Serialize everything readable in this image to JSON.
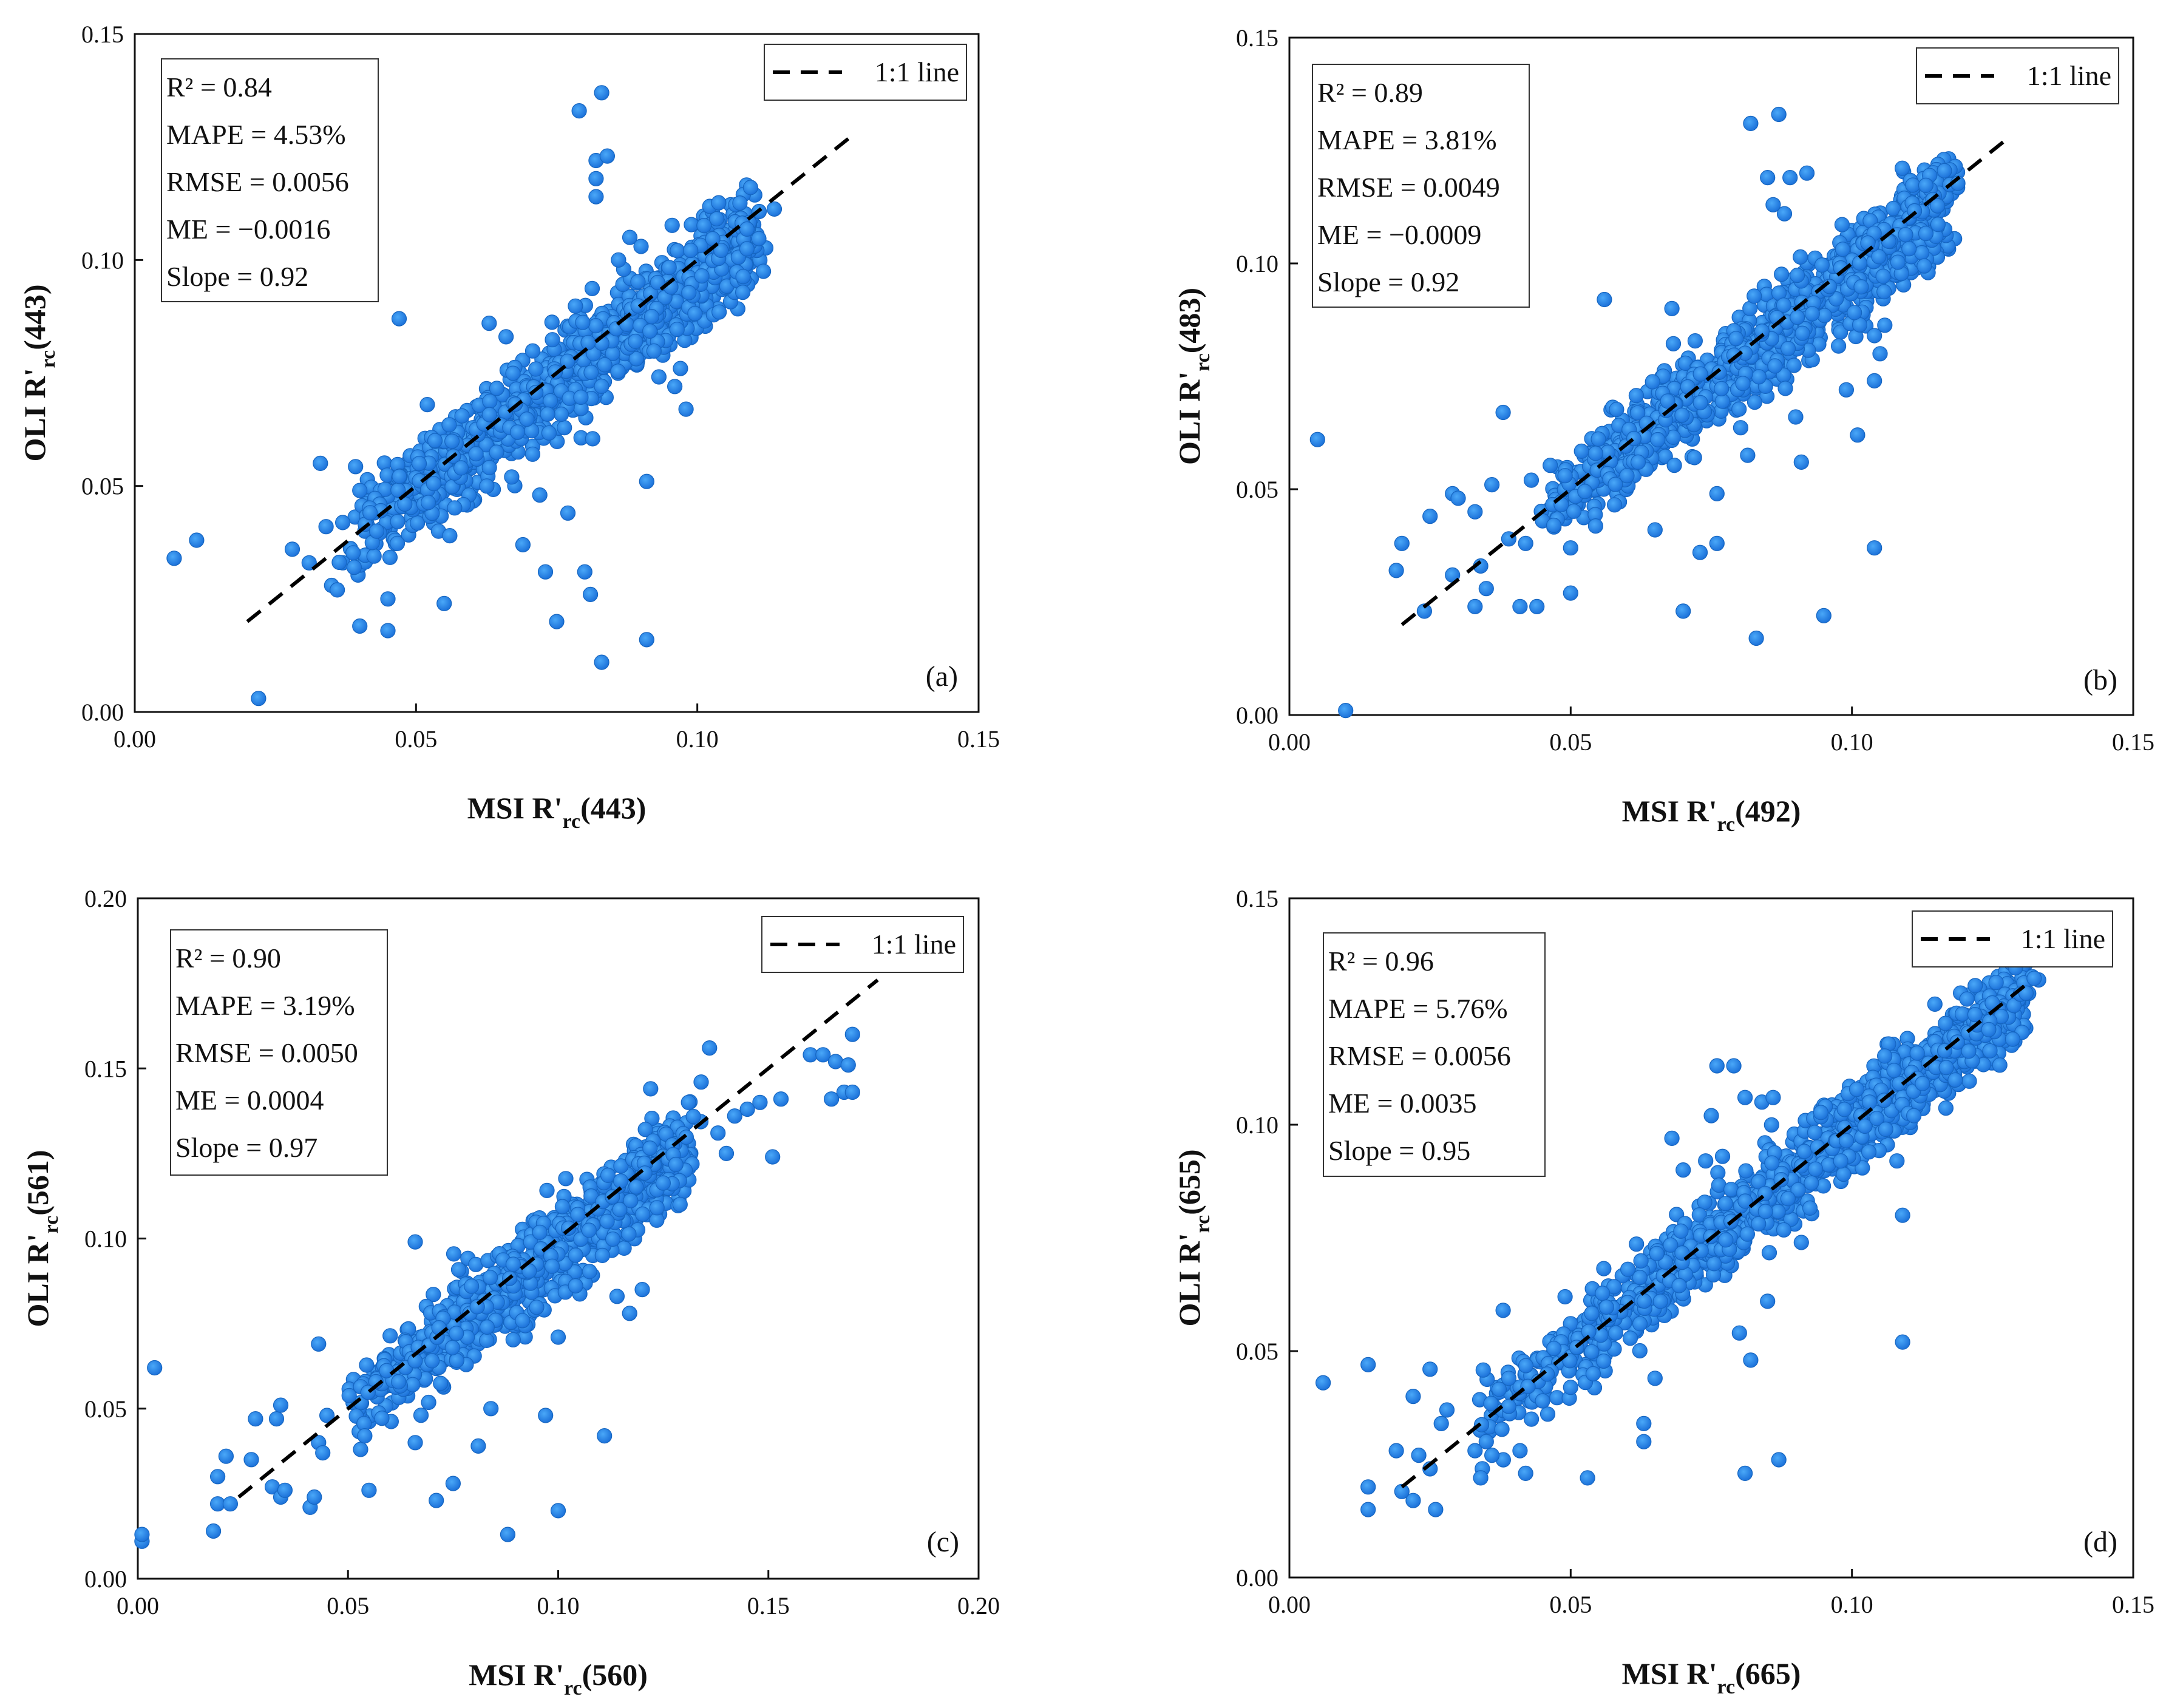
{
  "chart_data": [
    {
      "type": "scatter",
      "panel": "(a)",
      "xlabel": {
        "main": "MSI R'",
        "sub": "rc",
        "tail": "(443)"
      },
      "ylabel": {
        "main": "OLI R'",
        "sub": "rc",
        "tail": "(443)"
      },
      "xlim": [
        0,
        0.15
      ],
      "ylim": [
        0,
        0.15
      ],
      "xticks": [
        "0.00",
        "0.05",
        "0.10",
        "0.15"
      ],
      "yticks": [
        "0.00",
        "0.05",
        "0.10",
        "0.15"
      ],
      "stats": [
        "R² = 0.84",
        "MAPE = 4.53%",
        "RMSE = 0.0056",
        "ME = −0.0016",
        "Slope = 0.92"
      ],
      "legend": "1:1 line",
      "line": {
        "x0": 0.02,
        "x1": 0.127
      },
      "cluster": {
        "x0": 0.038,
        "x1": 0.11,
        "slope": 0.94,
        "intercept": 0.0025,
        "spread": 0.0055,
        "n": 1100
      },
      "outliers": [
        [
          0.007,
          0.034
        ],
        [
          0.011,
          0.038
        ],
        [
          0.022,
          0.003
        ],
        [
          0.028,
          0.036
        ],
        [
          0.031,
          0.033
        ],
        [
          0.033,
          0.055
        ],
        [
          0.034,
          0.041
        ],
        [
          0.035,
          0.028
        ],
        [
          0.036,
          0.027
        ],
        [
          0.039,
          0.032
        ],
        [
          0.04,
          0.019
        ],
        [
          0.04,
          0.049
        ],
        [
          0.043,
          0.04
        ],
        [
          0.045,
          0.018
        ],
        [
          0.045,
          0.025
        ],
        [
          0.047,
          0.087
        ],
        [
          0.048,
          0.046
        ],
        [
          0.052,
          0.068
        ],
        [
          0.054,
          0.04
        ],
        [
          0.055,
          0.024
        ],
        [
          0.056,
          0.039
        ],
        [
          0.058,
          0.054
        ],
        [
          0.063,
          0.086
        ],
        [
          0.066,
          0.083
        ],
        [
          0.067,
          0.052
        ],
        [
          0.069,
          0.037
        ],
        [
          0.072,
          0.048
        ],
        [
          0.073,
          0.031
        ],
        [
          0.075,
          0.02
        ],
        [
          0.077,
          0.044
        ],
        [
          0.079,
          0.133
        ],
        [
          0.08,
          0.031
        ],
        [
          0.081,
          0.026
        ],
        [
          0.082,
          0.114
        ],
        [
          0.082,
          0.118
        ],
        [
          0.082,
          0.122
        ],
        [
          0.083,
          0.137
        ],
        [
          0.083,
          0.011
        ],
        [
          0.084,
          0.123
        ],
        [
          0.086,
          0.1
        ],
        [
          0.088,
          0.105
        ],
        [
          0.089,
          0.082
        ],
        [
          0.09,
          0.103
        ],
        [
          0.091,
          0.051
        ],
        [
          0.091,
          0.016
        ],
        [
          0.096,
          0.072
        ],
        [
          0.097,
          0.076
        ],
        [
          0.098,
          0.067
        ]
      ]
    },
    {
      "type": "scatter",
      "panel": "(b)",
      "xlabel": {
        "main": "MSI R'",
        "sub": "rc",
        "tail": "(492)"
      },
      "ylabel": {
        "main": "OLI R'",
        "sub": "rc",
        "tail": "(483)"
      },
      "xlim": [
        0,
        0.15
      ],
      "ylim": [
        0,
        0.15
      ],
      "xticks": [
        "0.00",
        "0.05",
        "0.10",
        "0.15"
      ],
      "yticks": [
        "0.00",
        "0.05",
        "0.10",
        "0.15"
      ],
      "stats": [
        "R² = 0.89",
        "MAPE = 3.81%",
        "RMSE = 0.0049",
        "ME = −0.0009",
        "Slope = 0.92"
      ],
      "legend": "1:1 line",
      "line": {
        "x0": 0.02,
        "x1": 0.127
      },
      "cluster": {
        "x0": 0.045,
        "x1": 0.117,
        "slope": 0.97,
        "intercept": 0.0005,
        "spread": 0.005,
        "n": 1200
      },
      "outliers": [
        [
          0.005,
          0.061
        ],
        [
          0.01,
          0.001
        ],
        [
          0.019,
          0.032
        ],
        [
          0.02,
          0.038
        ],
        [
          0.024,
          0.023
        ],
        [
          0.025,
          0.044
        ],
        [
          0.029,
          0.031
        ],
        [
          0.029,
          0.049
        ],
        [
          0.03,
          0.048
        ],
        [
          0.033,
          0.024
        ],
        [
          0.033,
          0.045
        ],
        [
          0.034,
          0.033
        ],
        [
          0.035,
          0.028
        ],
        [
          0.036,
          0.051
        ],
        [
          0.038,
          0.067
        ],
        [
          0.039,
          0.039
        ],
        [
          0.041,
          0.024
        ],
        [
          0.042,
          0.038
        ],
        [
          0.043,
          0.052
        ],
        [
          0.044,
          0.024
        ],
        [
          0.045,
          0.043
        ],
        [
          0.047,
          0.042
        ],
        [
          0.049,
          0.053
        ],
        [
          0.05,
          0.027
        ],
        [
          0.05,
          0.037
        ],
        [
          0.056,
          0.092
        ],
        [
          0.06,
          0.053
        ],
        [
          0.062,
          0.056
        ],
        [
          0.065,
          0.041
        ],
        [
          0.068,
          0.09
        ],
        [
          0.07,
          0.023
        ],
        [
          0.072,
          0.057
        ],
        [
          0.073,
          0.036
        ],
        [
          0.076,
          0.038
        ],
        [
          0.076,
          0.049
        ],
        [
          0.082,
          0.131
        ],
        [
          0.083,
          0.017
        ],
        [
          0.084,
          0.085
        ],
        [
          0.085,
          0.119
        ],
        [
          0.086,
          0.113
        ],
        [
          0.087,
          0.133
        ],
        [
          0.088,
          0.111
        ],
        [
          0.089,
          0.119
        ],
        [
          0.09,
          0.066
        ],
        [
          0.091,
          0.056
        ],
        [
          0.092,
          0.12
        ],
        [
          0.095,
          0.022
        ],
        [
          0.098,
          0.099
        ],
        [
          0.099,
          0.072
        ],
        [
          0.101,
          0.062
        ],
        [
          0.104,
          0.074
        ],
        [
          0.104,
          0.037
        ],
        [
          0.105,
          0.08
        ],
        [
          0.104,
          0.084
        ]
      ]
    },
    {
      "type": "scatter",
      "panel": "(c)",
      "xlabel": {
        "main": "MSI R'",
        "sub": "rc",
        "tail": "(560)"
      },
      "ylabel": {
        "main": "OLI R'",
        "sub": "rc",
        "tail": "(561)"
      },
      "xlim": [
        0,
        0.2
      ],
      "ylim": [
        0,
        0.2
      ],
      "xticks": [
        "0.00",
        "0.05",
        "0.10",
        "0.15",
        "0.20"
      ],
      "yticks": [
        "0.00",
        "0.05",
        "0.10",
        "0.15",
        "0.20"
      ],
      "stats": [
        "R² = 0.90",
        "MAPE = 3.19%",
        "RMSE = 0.0050",
        "ME = 0.0004",
        "Slope = 0.97"
      ],
      "legend": "1:1 line",
      "line": {
        "x0": 0.024,
        "x1": 0.176
      },
      "cluster": {
        "x0": 0.05,
        "x1": 0.13,
        "slope": 0.96,
        "intercept": 0.0015,
        "spread": 0.0065,
        "n": 1000
      },
      "outliers": [
        [
          0.001,
          0.011
        ],
        [
          0.001,
          0.013
        ],
        [
          0.004,
          0.062
        ],
        [
          0.018,
          0.014
        ],
        [
          0.019,
          0.022
        ],
        [
          0.019,
          0.03
        ],
        [
          0.021,
          0.036
        ],
        [
          0.022,
          0.022
        ],
        [
          0.027,
          0.035
        ],
        [
          0.028,
          0.047
        ],
        [
          0.032,
          0.027
        ],
        [
          0.033,
          0.047
        ],
        [
          0.034,
          0.024
        ],
        [
          0.034,
          0.051
        ],
        [
          0.035,
          0.026
        ],
        [
          0.041,
          0.021
        ],
        [
          0.042,
          0.024
        ],
        [
          0.043,
          0.069
        ],
        [
          0.043,
          0.04
        ],
        [
          0.044,
          0.037
        ],
        [
          0.045,
          0.048
        ],
        [
          0.053,
          0.038
        ],
        [
          0.054,
          0.042
        ],
        [
          0.055,
          0.026
        ],
        [
          0.066,
          0.04
        ],
        [
          0.066,
          0.099
        ],
        [
          0.071,
          0.023
        ],
        [
          0.075,
          0.028
        ],
        [
          0.081,
          0.039
        ],
        [
          0.084,
          0.05
        ],
        [
          0.088,
          0.013
        ],
        [
          0.097,
          0.048
        ],
        [
          0.1,
          0.02
        ],
        [
          0.1,
          0.071
        ],
        [
          0.111,
          0.042
        ],
        [
          0.114,
          0.083
        ],
        [
          0.117,
          0.078
        ],
        [
          0.12,
          0.085
        ],
        [
          0.122,
          0.144
        ],
        [
          0.129,
          0.11
        ],
        [
          0.131,
          0.14
        ],
        [
          0.134,
          0.146
        ],
        [
          0.136,
          0.156
        ],
        [
          0.138,
          0.131
        ],
        [
          0.14,
          0.125
        ],
        [
          0.142,
          0.136
        ],
        [
          0.145,
          0.138
        ],
        [
          0.148,
          0.14
        ],
        [
          0.151,
          0.124
        ],
        [
          0.153,
          0.141
        ],
        [
          0.16,
          0.154
        ],
        [
          0.163,
          0.154
        ],
        [
          0.165,
          0.141
        ],
        [
          0.166,
          0.152
        ],
        [
          0.168,
          0.143
        ],
        [
          0.169,
          0.151
        ],
        [
          0.17,
          0.16
        ],
        [
          0.17,
          0.143
        ]
      ]
    },
    {
      "type": "scatter",
      "panel": "(d)",
      "xlabel": {
        "main": "MSI R'",
        "sub": "rc",
        "tail": "(665)"
      },
      "ylabel": {
        "main": "OLI R'",
        "sub": "rc",
        "tail": "(655)"
      },
      "xlim": [
        0,
        0.15
      ],
      "ylim": [
        0,
        0.15
      ],
      "xticks": [
        "0.00",
        "0.05",
        "0.10",
        "0.15"
      ],
      "yticks": [
        "0.00",
        "0.05",
        "0.10",
        "0.15"
      ],
      "stats": [
        "R² = 0.96",
        "MAPE = 5.76%",
        "RMSE = 0.0056",
        "ME = 0.0035",
        "Slope = 0.95"
      ],
      "legend": "1:1 line",
      "line": {
        "x0": 0.02,
        "x1": 0.131
      },
      "cluster": {
        "x0": 0.033,
        "x1": 0.131,
        "slope": 0.98,
        "intercept": 0.001,
        "spread": 0.0045,
        "n": 1400
      },
      "outliers": [
        [
          0.006,
          0.043
        ],
        [
          0.014,
          0.047
        ],
        [
          0.014,
          0.02
        ],
        [
          0.014,
          0.015
        ],
        [
          0.019,
          0.028
        ],
        [
          0.02,
          0.019
        ],
        [
          0.022,
          0.04
        ],
        [
          0.022,
          0.017
        ],
        [
          0.023,
          0.027
        ],
        [
          0.025,
          0.046
        ],
        [
          0.025,
          0.024
        ],
        [
          0.026,
          0.015
        ],
        [
          0.027,
          0.034
        ],
        [
          0.028,
          0.037
        ],
        [
          0.033,
          0.028
        ],
        [
          0.034,
          0.022
        ],
        [
          0.035,
          0.03
        ],
        [
          0.036,
          0.027
        ],
        [
          0.038,
          0.059
        ],
        [
          0.039,
          0.044
        ],
        [
          0.041,
          0.028
        ],
        [
          0.042,
          0.023
        ],
        [
          0.045,
          0.039
        ],
        [
          0.049,
          0.062
        ],
        [
          0.05,
          0.042
        ],
        [
          0.053,
          0.022
        ],
        [
          0.054,
          0.045
        ],
        [
          0.058,
          0.054
        ],
        [
          0.063,
          0.03
        ],
        [
          0.063,
          0.034
        ],
        [
          0.065,
          0.044
        ],
        [
          0.068,
          0.097
        ],
        [
          0.07,
          0.09
        ],
        [
          0.074,
          0.092
        ],
        [
          0.075,
          0.102
        ],
        [
          0.076,
          0.113
        ],
        [
          0.077,
          0.093
        ],
        [
          0.079,
          0.113
        ],
        [
          0.08,
          0.054
        ],
        [
          0.081,
          0.106
        ],
        [
          0.081,
          0.023
        ],
        [
          0.082,
          0.048
        ],
        [
          0.084,
          0.105
        ],
        [
          0.085,
          0.061
        ],
        [
          0.086,
          0.106
        ],
        [
          0.087,
          0.026
        ],
        [
          0.091,
          0.074
        ],
        [
          0.098,
          0.092
        ],
        [
          0.103,
          0.094
        ],
        [
          0.106,
          0.099
        ],
        [
          0.108,
          0.092
        ],
        [
          0.109,
          0.052
        ],
        [
          0.109,
          0.08
        ],
        [
          0.111,
          0.102
        ]
      ]
    }
  ]
}
